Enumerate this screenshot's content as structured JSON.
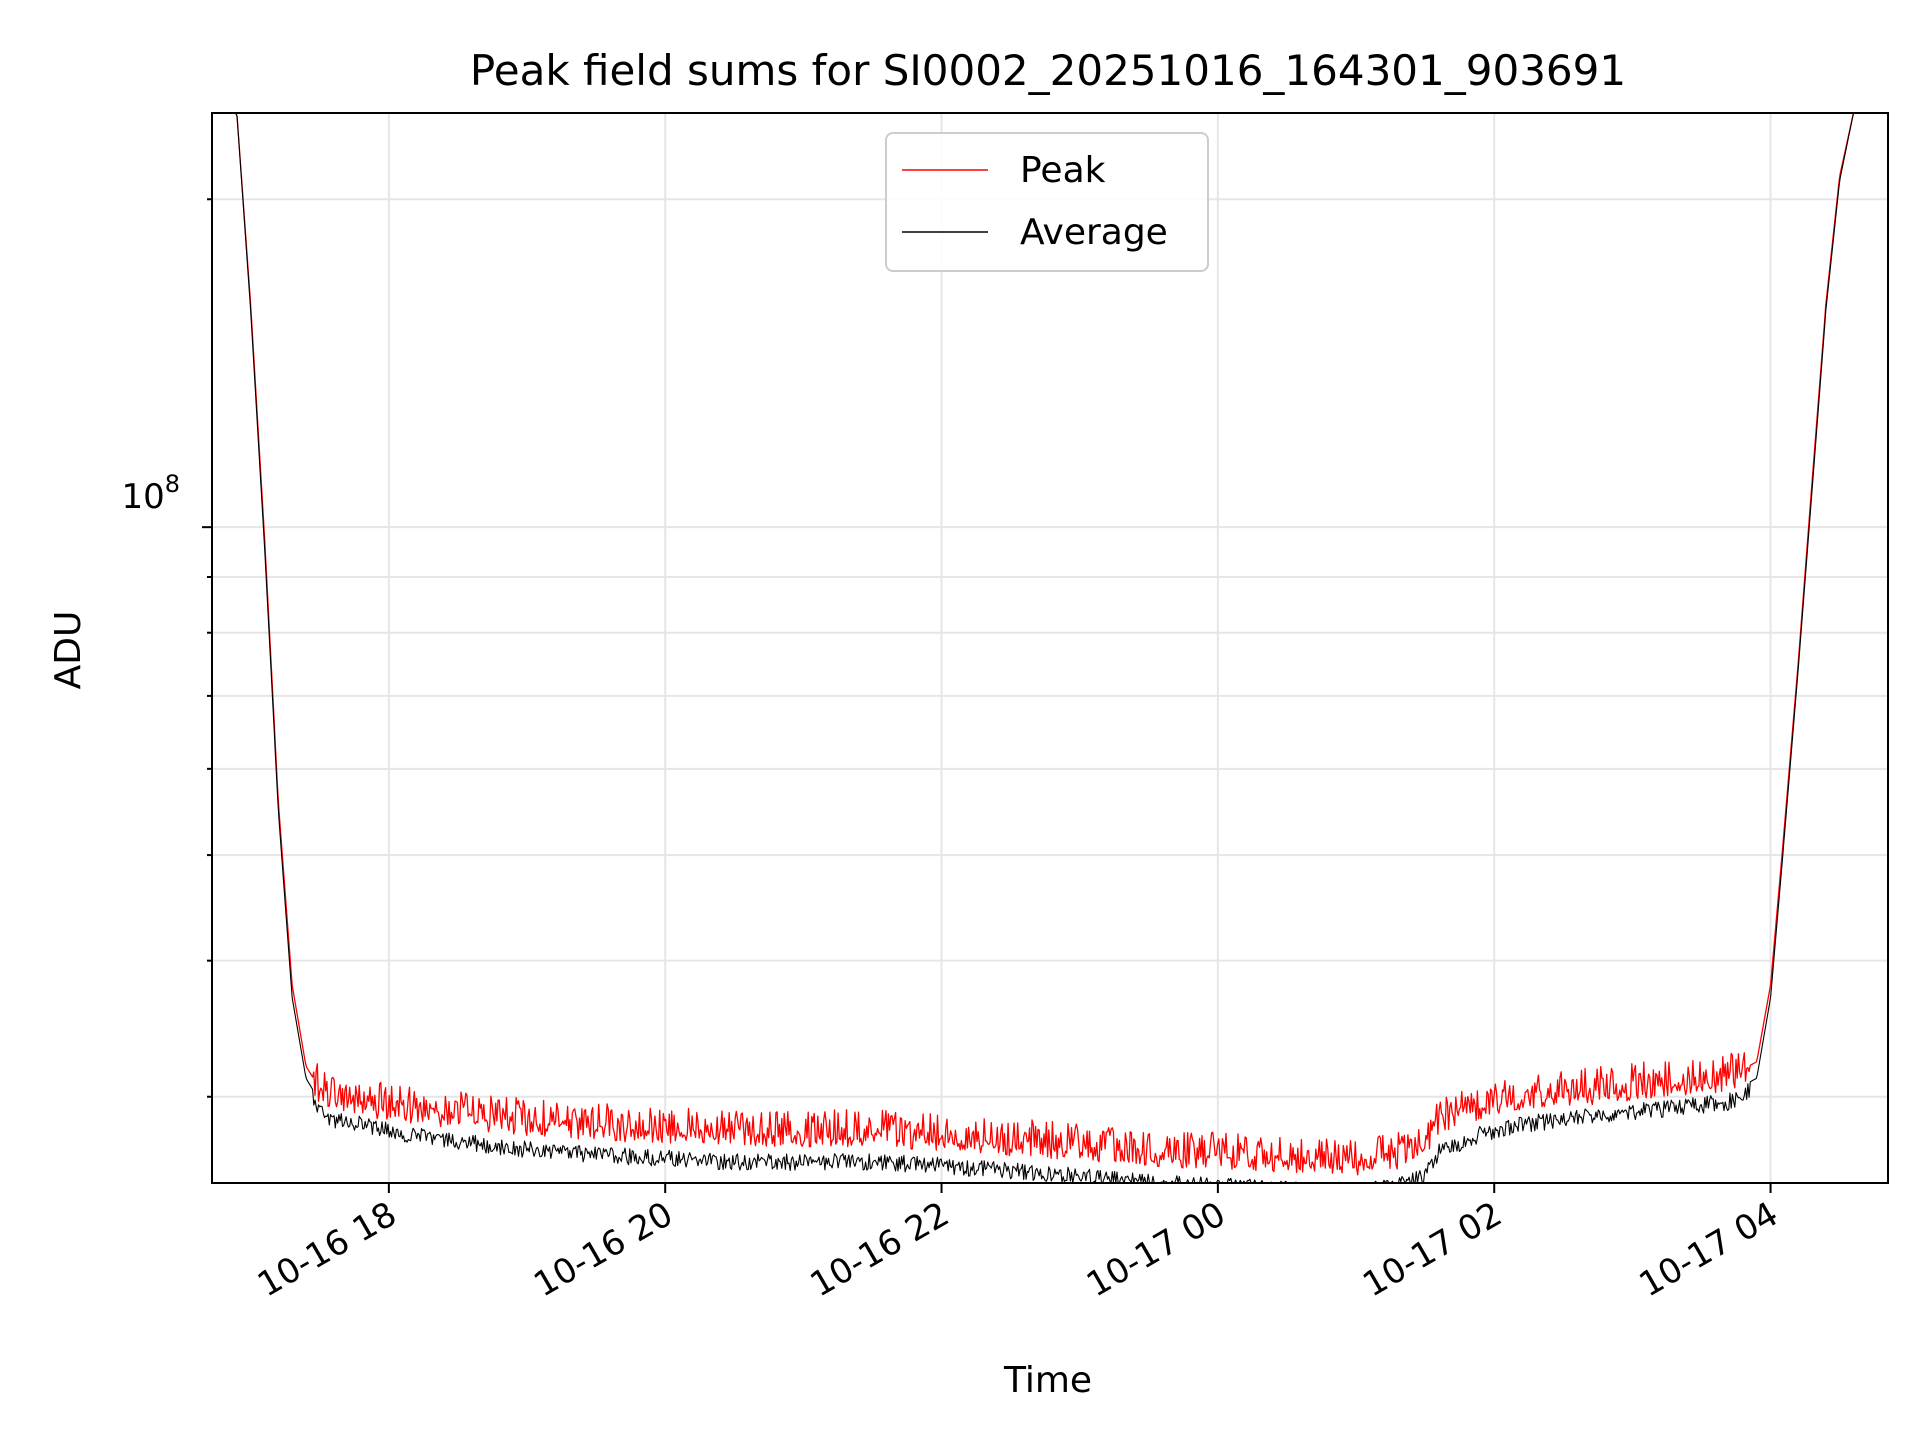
{
  "chart_data": {
    "type": "line",
    "title": "Peak field sums for SI0002_20251016_164301_903691",
    "xlabel": "Time",
    "ylabel": "ADU",
    "yscale": "log",
    "ylim": [
      25000000,
      240000000
    ],
    "xlim_hours_from_10_16_00": [
      16.72,
      28.85
    ],
    "grid": true,
    "legend_position": "upper center",
    "x_ticks": [
      {
        "hour": 18,
        "label": "10-16 18"
      },
      {
        "hour": 20,
        "label": "10-16 20"
      },
      {
        "hour": 22,
        "label": "10-16 22"
      },
      {
        "hour": 24,
        "label": "10-17 00"
      },
      {
        "hour": 26,
        "label": "10-17 02"
      },
      {
        "hour": 28,
        "label": "10-17 04"
      }
    ],
    "y_major_tick": {
      "value": 100000000,
      "base": "10",
      "exp": "8"
    },
    "y_minor_ticks": [
      30000000,
      40000000,
      50000000,
      60000000,
      70000000,
      80000000,
      90000000,
      200000000
    ],
    "series": [
      {
        "name": "Peak",
        "color": "#ff0000",
        "x_hours": [
          16.72,
          16.9,
          17.0,
          17.1,
          17.2,
          17.3,
          17.4,
          17.5,
          17.6,
          17.8,
          18.0,
          18.3,
          18.6,
          19.0,
          19.5,
          20.0,
          20.5,
          21.0,
          21.5,
          22.0,
          22.5,
          23.0,
          23.5,
          24.0,
          24.5,
          25.0,
          25.3,
          25.5,
          25.6,
          25.9,
          26.2,
          26.6,
          27.0,
          27.4,
          27.7,
          27.9,
          28.0,
          28.1,
          28.2,
          28.3,
          28.4,
          28.5,
          28.6,
          28.85
        ],
        "values": [
          240000000,
          240000000,
          160000000,
          98000000,
          56000000,
          38000000,
          32000000,
          30500000,
          30000000,
          29700000,
          29400000,
          29100000,
          28800000,
          28500000,
          28200000,
          28000000,
          27800000,
          27800000,
          27800000,
          27600000,
          27300000,
          27000000,
          26700000,
          26500000,
          26300000,
          26200000,
          26500000,
          27000000,
          28500000,
          29400000,
          29900000,
          30300000,
          30700000,
          31000000,
          31300000,
          32300000,
          38000000,
          53000000,
          75000000,
          110000000,
          160000000,
          210000000,
          240000000,
          240000000
        ]
      },
      {
        "name": "Average",
        "color": "#000000",
        "x_hours": [
          16.72,
          16.9,
          17.0,
          17.1,
          17.2,
          17.3,
          17.4,
          17.5,
          17.6,
          17.8,
          18.0,
          18.3,
          18.6,
          19.0,
          19.5,
          20.0,
          20.5,
          21.0,
          21.5,
          22.0,
          22.5,
          23.0,
          23.5,
          24.0,
          24.5,
          25.0,
          25.3,
          25.5,
          25.6,
          25.9,
          26.2,
          26.6,
          27.0,
          27.4,
          27.7,
          27.9,
          28.0,
          28.1,
          28.2,
          28.3,
          28.4,
          28.5,
          28.6,
          28.85
        ],
        "values": [
          240000000,
          240000000,
          158000000,
          96000000,
          55000000,
          37000000,
          31200000,
          29700000,
          29100000,
          28800000,
          28400000,
          28000000,
          27700000,
          27300000,
          27000000,
          26800000,
          26600000,
          26600000,
          26600000,
          26400000,
          26100000,
          25800000,
          25500000,
          25300000,
          25100000,
          25000000,
          25300000,
          25800000,
          27200000,
          28200000,
          28800000,
          29200000,
          29600000,
          29900000,
          30200000,
          31200000,
          37000000,
          52000000,
          74000000,
          108000000,
          158000000,
          208000000,
          240000000,
          240000000
        ]
      }
    ]
  }
}
